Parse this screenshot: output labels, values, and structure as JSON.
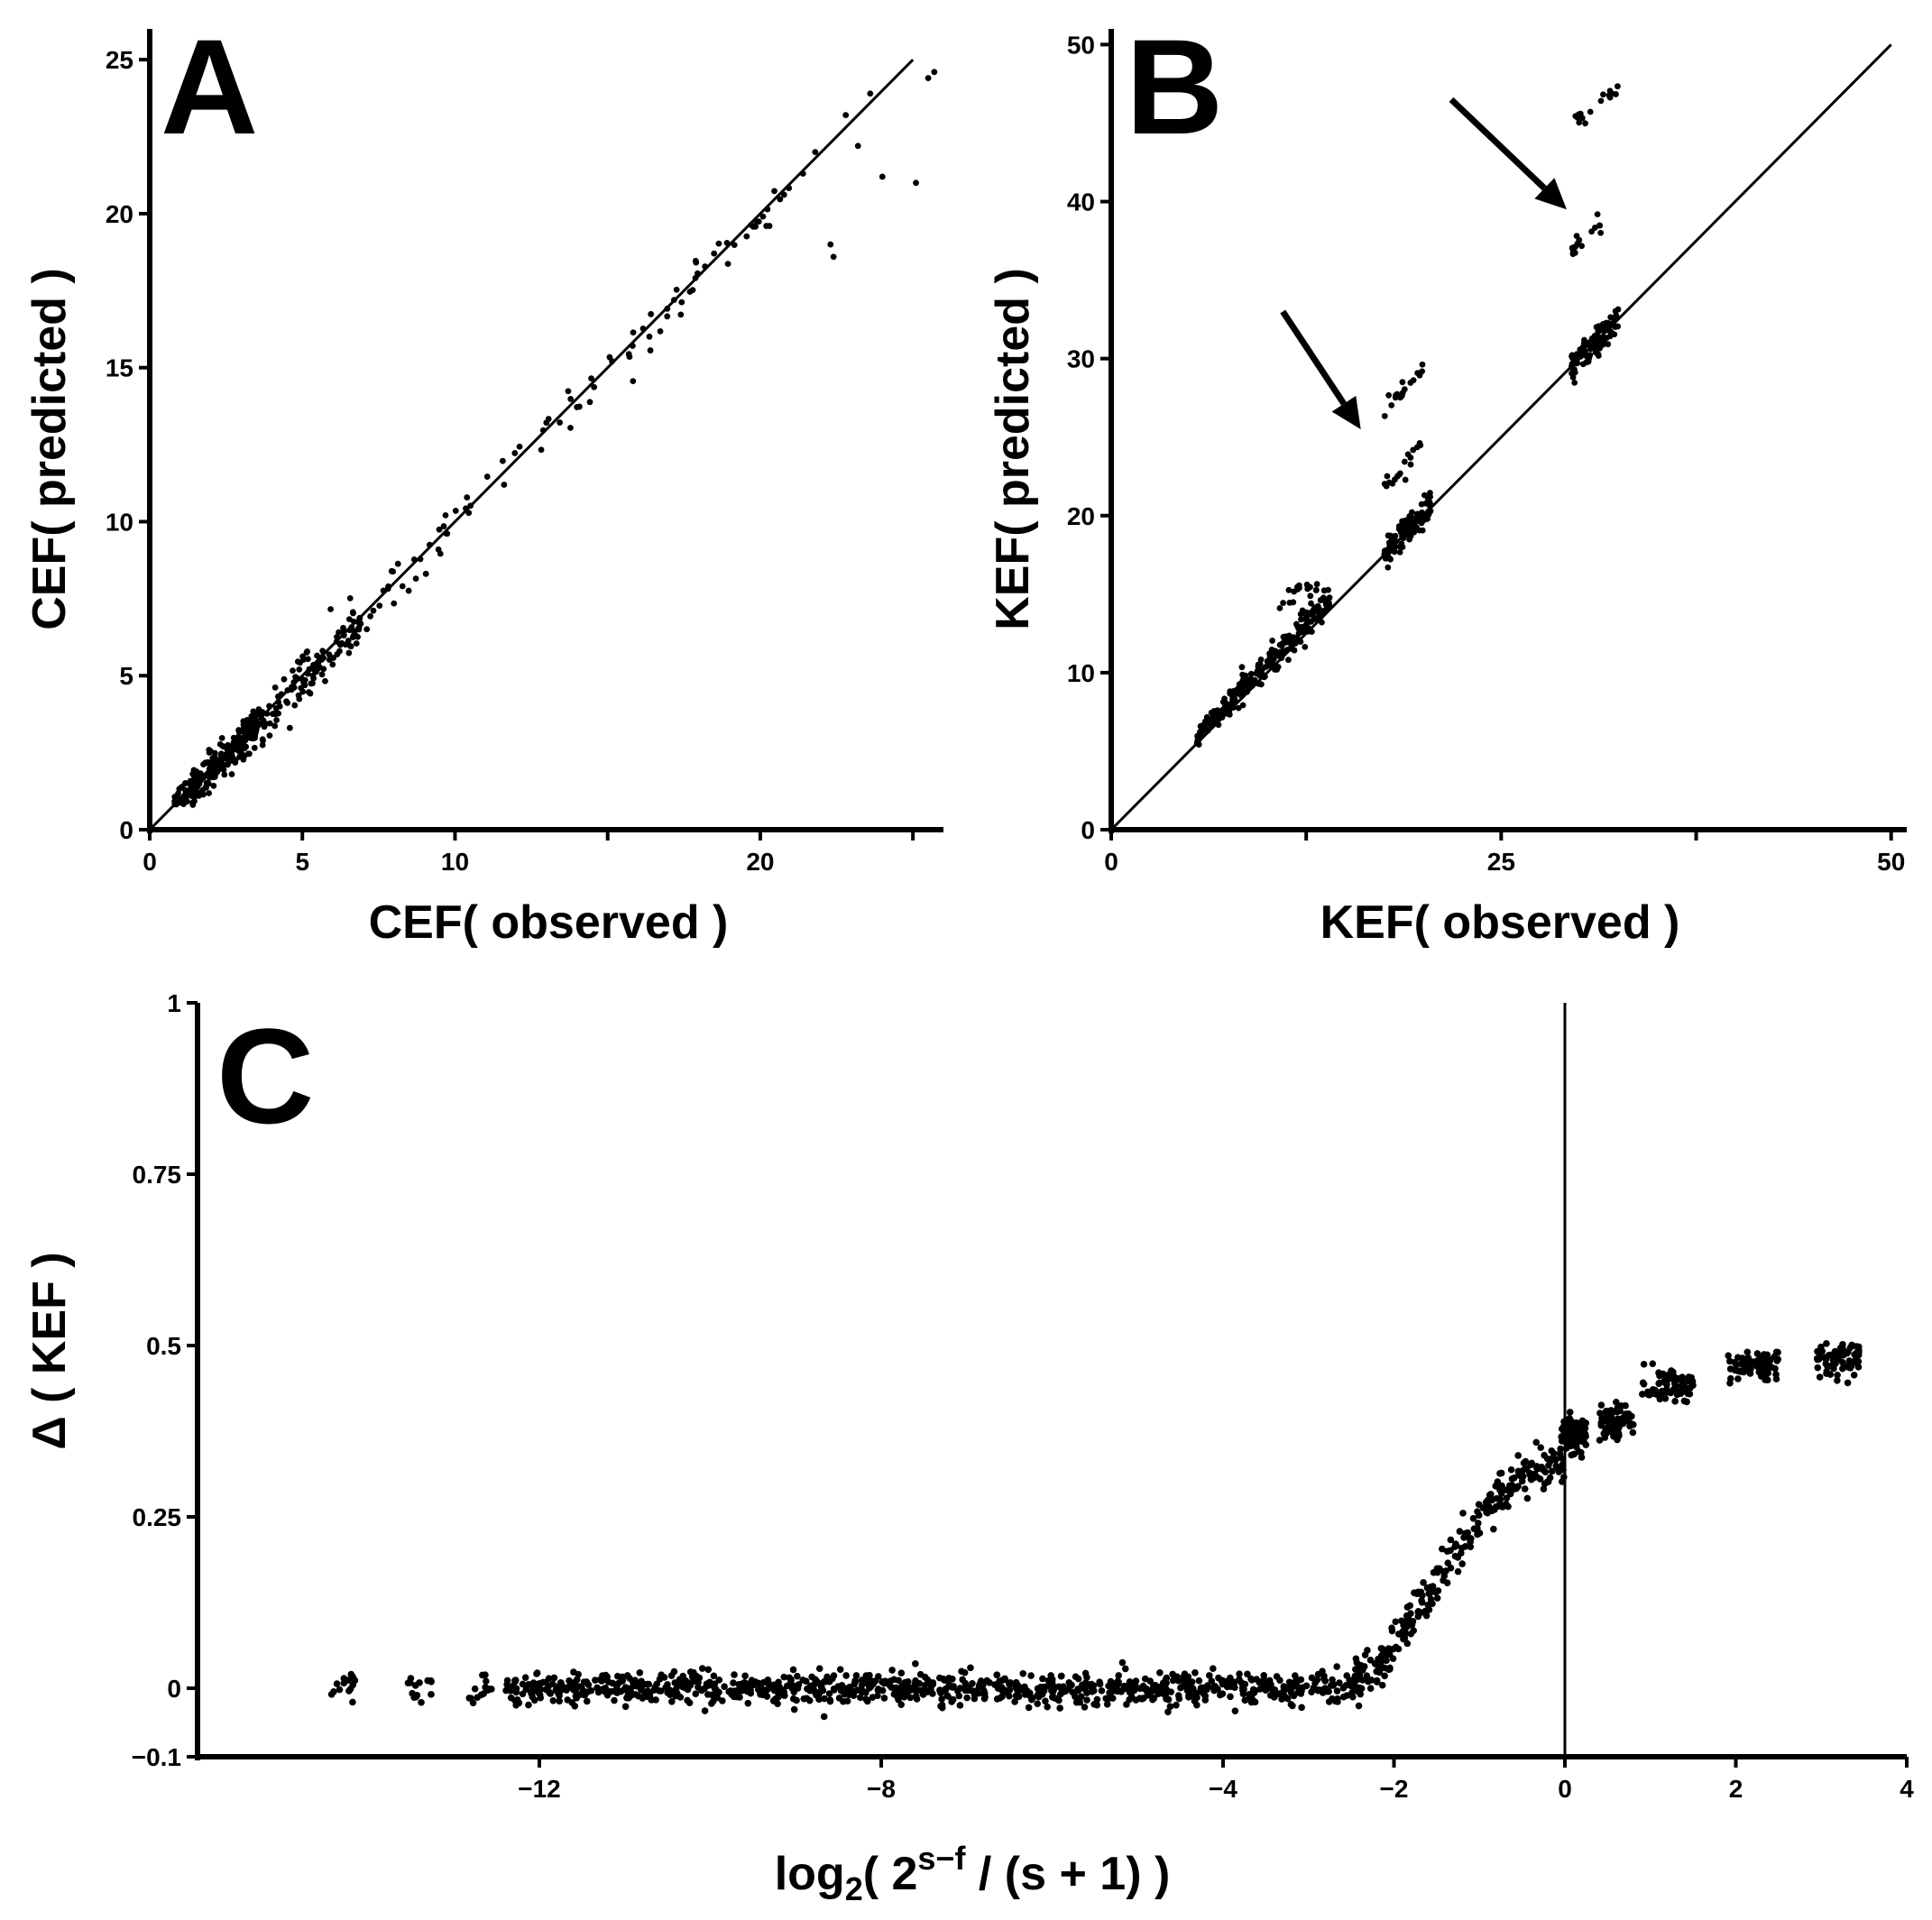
{
  "chart_data": [
    {
      "panel": "A",
      "type": "scatter",
      "xlabel": "CEF( observed )",
      "ylabel": "CEF( predicted )",
      "xlim": [
        0,
        26
      ],
      "ylim": [
        0,
        26
      ],
      "xticks": [
        0,
        5,
        10,
        15,
        20,
        25
      ],
      "xtick_labels": [
        "0",
        "5",
        "10",
        "",
        "20",
        ""
      ],
      "yticks": [
        0,
        5,
        10,
        15,
        20,
        25
      ],
      "ytick_labels": [
        "0",
        "5",
        "10",
        "15",
        "20",
        "25"
      ],
      "reference_line": {
        "x": [
          0,
          25
        ],
        "y": [
          0,
          25
        ]
      },
      "clusters": [
        {
          "x_center": 2.2,
          "y_center": 2.0,
          "x_spread": 0.9,
          "y_spread": 0.9,
          "count": 220,
          "along_line": true,
          "x_range": [
            0.8,
            3.5
          ]
        },
        {
          "x_center": 4.5,
          "y_center": 4.4,
          "count": 160,
          "along_line": true,
          "x_range": [
            3.0,
            7.0
          ],
          "jitter": 0.35
        },
        {
          "count": 90,
          "along_line": true,
          "x_range": [
            7.0,
            21.0
          ],
          "jitter": 0.35
        }
      ],
      "points": [
        {
          "x": 25.7,
          "y": 24.6
        },
        {
          "x": 25.5,
          "y": 24.4
        },
        {
          "x": 25.1,
          "y": 21.0
        },
        {
          "x": 24.0,
          "y": 21.2
        },
        {
          "x": 23.2,
          "y": 22.2
        },
        {
          "x": 22.8,
          "y": 23.2
        },
        {
          "x": 22.4,
          "y": 18.6
        },
        {
          "x": 22.3,
          "y": 19.0
        },
        {
          "x": 21.8,
          "y": 22.0
        },
        {
          "x": 21.4,
          "y": 21.3
        },
        {
          "x": 20.3,
          "y": 19.6
        },
        {
          "x": 20.2,
          "y": 19.6
        },
        {
          "x": 23.6,
          "y": 23.9
        }
      ]
    },
    {
      "panel": "B",
      "type": "scatter",
      "xlabel": "KEF( observed )",
      "ylabel": "KEF( predicted )",
      "xlim": [
        0,
        51
      ],
      "ylim": [
        0,
        51
      ],
      "xticks": [
        0,
        12.5,
        25,
        37.5,
        50
      ],
      "xtick_labels": [
        "0",
        "",
        "25",
        "",
        "50"
      ],
      "yticks": [
        0,
        10,
        20,
        30,
        40,
        50
      ],
      "ytick_labels": [
        "0",
        "10",
        "20",
        "30",
        "40",
        "50"
      ],
      "reference_line": {
        "x": [
          0,
          50
        ],
        "y": [
          0,
          50
        ]
      },
      "clusters": [
        {
          "count": 260,
          "along_line": true,
          "x_range": [
            5.5,
            14.0
          ],
          "offset": 0.5,
          "jitter": 0.45
        },
        {
          "count": 110,
          "along_line": true,
          "x_range": [
            17.5,
            20.5
          ],
          "offset": 0.0,
          "jitter": 0.5
        },
        {
          "count": 110,
          "along_line": true,
          "x_range": [
            29.5,
            32.5
          ],
          "offset": 0.0,
          "jitter": 0.5
        },
        {
          "count": 18,
          "x_range": [
            10.8,
            13.2
          ],
          "y_range": [
            14.5,
            15.8
          ]
        },
        {
          "count": 18,
          "x_range": [
            17.5,
            20.0
          ],
          "y_range": [
            21.8,
            24.5
          ]
        },
        {
          "count": 18,
          "x_range": [
            17.5,
            20.0
          ],
          "y_range": [
            26.5,
            29.5
          ]
        },
        {
          "count": 16,
          "x_range": [
            29.5,
            31.5
          ],
          "y_range": [
            36.8,
            38.8
          ]
        },
        {
          "count": 16,
          "x_range": [
            29.5,
            32.5
          ],
          "y_range": [
            44.8,
            47.2
          ]
        }
      ],
      "arrows": [
        {
          "from": [
            11.0,
            33.0
          ],
          "to": [
            16.0,
            25.5
          ]
        },
        {
          "from": [
            21.8,
            46.5
          ],
          "to": [
            29.2,
            39.5
          ]
        }
      ]
    },
    {
      "panel": "C",
      "type": "scatter",
      "xlabel": "log2( 2^(s−f) / (s + 1) )",
      "ylabel": "Δ ( KEF )",
      "xlim": [
        -16,
        4
      ],
      "ylim": [
        -0.1,
        1.0
      ],
      "xticks": [
        -12,
        -8,
        -4,
        -2,
        0,
        2,
        4
      ],
      "xtick_labels": [
        "−12",
        "−8",
        "−4",
        "−2",
        "0",
        "2",
        "4"
      ],
      "yticks": [
        -0.1,
        0,
        0.25,
        0.5,
        0.75,
        1
      ],
      "ytick_labels": [
        "−0.1",
        "0",
        "0.25",
        "0.5",
        "0.75",
        "1"
      ],
      "vertical_line_x": 0,
      "groups_x": [
        -14.3,
        -13.4,
        -12.7,
        -12.2,
        -11.8,
        -11.4,
        -11.0,
        -10.6,
        -10.2,
        -9.8,
        -9.4,
        -9.0,
        -8.6,
        -8.2,
        -7.8,
        -7.4,
        -7.0,
        -6.6,
        -6.2,
        -5.8,
        -5.4,
        -5.0,
        -4.6,
        -4.2,
        -3.8,
        -3.4,
        -3.0,
        -2.6
      ],
      "curve_x": [
        -2.5,
        -2.2,
        -2.0,
        -1.8,
        -1.6,
        -1.4,
        -1.2,
        -1.0,
        -0.8,
        -0.6,
        -0.4,
        -0.2,
        0.0
      ],
      "curve_y": [
        0.01,
        0.03,
        0.06,
        0.1,
        0.14,
        0.18,
        0.21,
        0.25,
        0.28,
        0.3,
        0.31,
        0.32,
        0.33
      ],
      "right_groups": [
        {
          "x": 0.1,
          "y": 0.37,
          "width": 0.3
        },
        {
          "x": 0.6,
          "y": 0.39,
          "width": 0.4
        },
        {
          "x": 1.2,
          "y": 0.44,
          "width": 0.6
        },
        {
          "x": 2.2,
          "y": 0.47,
          "width": 0.6
        },
        {
          "x": 3.2,
          "y": 0.48,
          "width": 0.5
        }
      ]
    }
  ],
  "panels": {
    "a": {
      "letter": "A",
      "xlabel": "CEF( observed )",
      "ylabel": "CEF( predicted )"
    },
    "b": {
      "letter": "B",
      "xlabel": "KEF( observed )",
      "ylabel": "KEF( predicted )"
    },
    "c": {
      "letter": "C",
      "xlabel_prefix": "log",
      "xlabel_sub": "2",
      "xlabel_mid": "( 2",
      "xlabel_sup": "s−f",
      "xlabel_tail": " / (s + 1) )",
      "ylabel": "Δ ( KEF )"
    }
  }
}
